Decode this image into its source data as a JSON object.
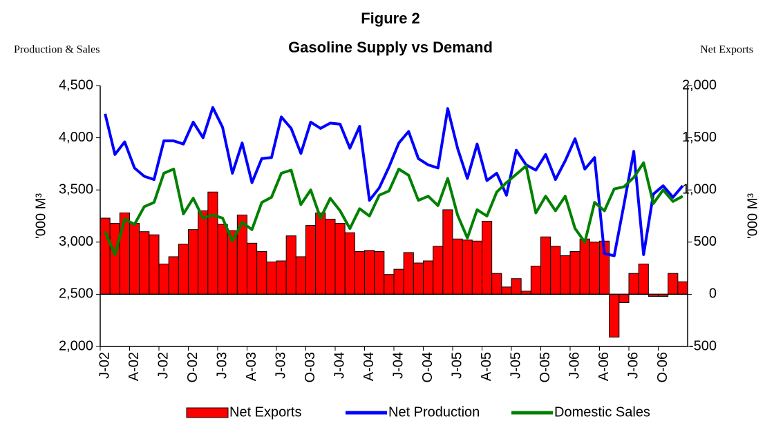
{
  "chart_data": {
    "type": "bar_line",
    "title": "Figure 2",
    "subtitle": "Gasoline Supply vs Demand",
    "y_label_top": "Production & Sales",
    "y2_label_top": "Net Exports",
    "y_label": "'000 M³",
    "y2_label": "'000 M³",
    "categories": [
      "J-02",
      null,
      null,
      "A-02",
      null,
      null,
      "J-02",
      null,
      null,
      "O-02",
      null,
      null,
      "J-03",
      null,
      null,
      "A-03",
      null,
      null,
      "J-03",
      null,
      null,
      "O-03",
      null,
      null,
      "J-04",
      null,
      null,
      "A-04",
      null,
      null,
      "J-04",
      null,
      null,
      "O-04",
      null,
      null,
      "J-05",
      null,
      null,
      "A-05",
      null,
      null,
      "J-05",
      null,
      null,
      "O-05",
      null,
      null,
      "J-06",
      null,
      null,
      "A-06",
      null,
      null,
      "J-06",
      null,
      null,
      "O-06",
      null,
      null
    ],
    "series": [
      {
        "name": "Net Exports",
        "kind": "bar",
        "axis": "y2",
        "color": "#ff0000",
        "values": [
          730,
          680,
          780,
          680,
          600,
          570,
          290,
          360,
          480,
          620,
          800,
          980,
          670,
          610,
          760,
          490,
          410,
          310,
          320,
          560,
          360,
          660,
          780,
          720,
          680,
          590,
          410,
          420,
          410,
          190,
          240,
          400,
          300,
          320,
          460,
          810,
          530,
          520,
          510,
          700,
          200,
          70,
          150,
          30,
          270,
          550,
          460,
          370,
          410,
          530,
          500,
          510,
          -410,
          -80,
          200,
          290,
          -20,
          -20,
          200,
          120
        ]
      },
      {
        "name": "Net Production",
        "kind": "line",
        "color": "#0000ff",
        "values": [
          4230,
          3840,
          3960,
          3710,
          3630,
          3600,
          3970,
          3970,
          3940,
          4150,
          4000,
          4290,
          4100,
          3660,
          3950,
          3570,
          3800,
          3810,
          4200,
          4090,
          3850,
          4150,
          4090,
          4140,
          4130,
          3900,
          4110,
          3400,
          3520,
          3720,
          3950,
          4060,
          3800,
          3740,
          3710,
          4280,
          3900,
          3610,
          3940,
          3590,
          3660,
          3450,
          3880,
          3740,
          3690,
          3840,
          3600,
          3780,
          3990,
          3700,
          3810,
          2890,
          2870,
          3360,
          3870,
          2880,
          3460,
          3540,
          3430,
          3540
        ]
      },
      {
        "name": "Domestic Sales",
        "kind": "line",
        "color": "#008000",
        "values": [
          3100,
          2880,
          3220,
          3170,
          3340,
          3380,
          3660,
          3700,
          3270,
          3420,
          3230,
          3260,
          3230,
          3010,
          3190,
          3120,
          3380,
          3430,
          3660,
          3690,
          3360,
          3500,
          3230,
          3420,
          3300,
          3130,
          3320,
          3250,
          3450,
          3490,
          3700,
          3640,
          3400,
          3440,
          3350,
          3610,
          3260,
          3040,
          3310,
          3250,
          3480,
          3570,
          3650,
          3730,
          3280,
          3440,
          3300,
          3440,
          3130,
          3000,
          3380,
          3300,
          3510,
          3530,
          3620,
          3760,
          3370,
          3500,
          3390,
          3440
        ]
      }
    ],
    "ylim": [
      2000,
      4500
    ],
    "yticks": [
      {
        "value": 2000,
        "label": "2,000"
      },
      {
        "value": 2500,
        "label": "2,500"
      },
      {
        "value": 3000,
        "label": "3,000"
      },
      {
        "value": 3500,
        "label": "3,500"
      },
      {
        "value": 4000,
        "label": "4,000"
      },
      {
        "value": 4500,
        "label": "4,500"
      }
    ],
    "y2lim": [
      -500,
      2000
    ],
    "y2ticks": [
      -500,
      0,
      500,
      {
        "value": 1000,
        "label": "1,000"
      },
      {
        "value": 1500,
        "label": "1,500"
      },
      {
        "value": 2000,
        "label": "2,000"
      }
    ],
    "legend": "bottom"
  }
}
